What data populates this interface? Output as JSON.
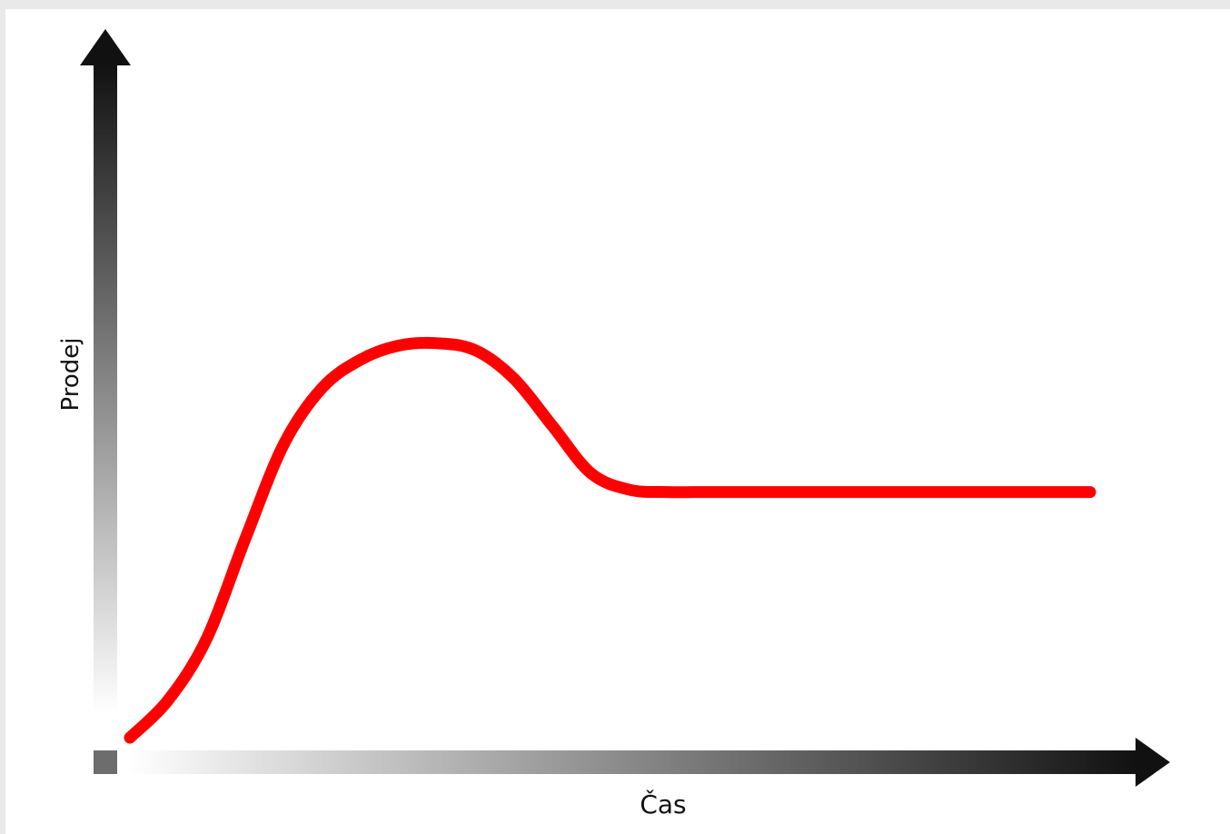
{
  "chart_data": {
    "type": "line",
    "title": "",
    "xlabel": "Čas",
    "ylabel": "Prodej",
    "xlim": [
      0,
      10
    ],
    "ylim": [
      0,
      10
    ],
    "grid": false,
    "legend": "none",
    "series": [
      {
        "color": "#ff0000",
        "x": [
          0,
          0.4,
          0.8,
          1.2,
          1.6,
          2.0,
          2.4,
          2.8,
          3.2,
          3.6,
          4.0,
          4.4,
          4.8,
          5.2,
          5.6,
          6.0,
          7.0,
          8.0,
          9.0,
          10.0
        ],
        "y": [
          0,
          0.8,
          2.1,
          4.2,
          6.2,
          7.4,
          8.0,
          8.3,
          8.35,
          8.2,
          7.6,
          6.6,
          5.6,
          5.25,
          5.2,
          5.2,
          5.2,
          5.2,
          5.2,
          5.2
        ]
      }
    ]
  },
  "colors": {
    "line": "#ff0000",
    "axis_dark": "#111111",
    "axis_light": "#ffffff",
    "origin_marker": "#6d6d6d",
    "frame": "#e9e9e9"
  }
}
